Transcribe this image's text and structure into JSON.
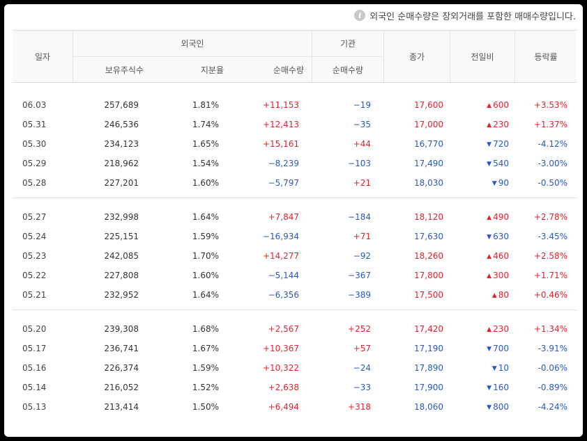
{
  "notice": {
    "icon": "info-icon",
    "text": "외국인 순매수량은 장외거래를 포함한 매매수량입니다."
  },
  "headers": {
    "date": "일자",
    "foreign": "외국인",
    "holdings": "보유주식수",
    "ratio": "지분율",
    "foreign_net": "순매수량",
    "institution": "기관",
    "institution_net": "순매수량",
    "close": "종가",
    "diff": "전일비",
    "rate": "등락률"
  },
  "colors": {
    "up": "#e5212d",
    "down": "#2a58c3"
  },
  "groups": [
    [
      {
        "date": "06.03",
        "holdings": "257,689",
        "ratio": "1.81%",
        "foreign_net": "+11,153",
        "foreign_dir": "up",
        "inst_net": "−19",
        "inst_dir": "down",
        "close": "17,600",
        "close_dir": "up",
        "diff": "600",
        "diff_dir": "up",
        "rate": "+3.53%"
      },
      {
        "date": "05.31",
        "holdings": "246,536",
        "ratio": "1.74%",
        "foreign_net": "+12,413",
        "foreign_dir": "up",
        "inst_net": "−35",
        "inst_dir": "down",
        "close": "17,000",
        "close_dir": "up",
        "diff": "230",
        "diff_dir": "up",
        "rate": "+1.37%"
      },
      {
        "date": "05.30",
        "holdings": "234,123",
        "ratio": "1.65%",
        "foreign_net": "+15,161",
        "foreign_dir": "up",
        "inst_net": "+44",
        "inst_dir": "up",
        "close": "16,770",
        "close_dir": "down",
        "diff": "720",
        "diff_dir": "down",
        "rate": "-4.12%"
      },
      {
        "date": "05.29",
        "holdings": "218,962",
        "ratio": "1.54%",
        "foreign_net": "−8,239",
        "foreign_dir": "down",
        "inst_net": "−103",
        "inst_dir": "down",
        "close": "17,490",
        "close_dir": "down",
        "diff": "540",
        "diff_dir": "down",
        "rate": "-3.00%"
      },
      {
        "date": "05.28",
        "holdings": "227,201",
        "ratio": "1.60%",
        "foreign_net": "−5,797",
        "foreign_dir": "down",
        "inst_net": "+21",
        "inst_dir": "up",
        "close": "18,030",
        "close_dir": "down",
        "diff": "90",
        "diff_dir": "down",
        "rate": "-0.50%"
      }
    ],
    [
      {
        "date": "05.27",
        "holdings": "232,998",
        "ratio": "1.64%",
        "foreign_net": "+7,847",
        "foreign_dir": "up",
        "inst_net": "−184",
        "inst_dir": "down",
        "close": "18,120",
        "close_dir": "up",
        "diff": "490",
        "diff_dir": "up",
        "rate": "+2.78%"
      },
      {
        "date": "05.24",
        "holdings": "225,151",
        "ratio": "1.59%",
        "foreign_net": "−16,934",
        "foreign_dir": "down",
        "inst_net": "+71",
        "inst_dir": "up",
        "close": "17,630",
        "close_dir": "down",
        "diff": "630",
        "diff_dir": "down",
        "rate": "-3.45%"
      },
      {
        "date": "05.23",
        "holdings": "242,085",
        "ratio": "1.70%",
        "foreign_net": "+14,277",
        "foreign_dir": "up",
        "inst_net": "−92",
        "inst_dir": "down",
        "close": "18,260",
        "close_dir": "up",
        "diff": "460",
        "diff_dir": "up",
        "rate": "+2.58%"
      },
      {
        "date": "05.22",
        "holdings": "227,808",
        "ratio": "1.60%",
        "foreign_net": "−5,144",
        "foreign_dir": "down",
        "inst_net": "−367",
        "inst_dir": "down",
        "close": "17,800",
        "close_dir": "up",
        "diff": "300",
        "diff_dir": "up",
        "rate": "+1.71%"
      },
      {
        "date": "05.21",
        "holdings": "232,952",
        "ratio": "1.64%",
        "foreign_net": "−6,356",
        "foreign_dir": "down",
        "inst_net": "−389",
        "inst_dir": "down",
        "close": "17,500",
        "close_dir": "up",
        "diff": "80",
        "diff_dir": "up",
        "rate": "+0.46%"
      }
    ],
    [
      {
        "date": "05.20",
        "holdings": "239,308",
        "ratio": "1.68%",
        "foreign_net": "+2,567",
        "foreign_dir": "up",
        "inst_net": "+252",
        "inst_dir": "up",
        "close": "17,420",
        "close_dir": "up",
        "diff": "230",
        "diff_dir": "up",
        "rate": "+1.34%"
      },
      {
        "date": "05.17",
        "holdings": "236,741",
        "ratio": "1.67%",
        "foreign_net": "+10,367",
        "foreign_dir": "up",
        "inst_net": "+57",
        "inst_dir": "up",
        "close": "17,190",
        "close_dir": "down",
        "diff": "700",
        "diff_dir": "down",
        "rate": "-3.91%"
      },
      {
        "date": "05.16",
        "holdings": "226,374",
        "ratio": "1.59%",
        "foreign_net": "+10,322",
        "foreign_dir": "up",
        "inst_net": "−24",
        "inst_dir": "down",
        "close": "17,890",
        "close_dir": "down",
        "diff": "10",
        "diff_dir": "down",
        "rate": "-0.06%"
      },
      {
        "date": "05.14",
        "holdings": "216,052",
        "ratio": "1.52%",
        "foreign_net": "+2,638",
        "foreign_dir": "up",
        "inst_net": "−33",
        "inst_dir": "down",
        "close": "17,900",
        "close_dir": "down",
        "diff": "160",
        "diff_dir": "down",
        "rate": "-0.89%"
      },
      {
        "date": "05.13",
        "holdings": "213,414",
        "ratio": "1.50%",
        "foreign_net": "+6,494",
        "foreign_dir": "up",
        "inst_net": "+318",
        "inst_dir": "up",
        "close": "18,060",
        "close_dir": "down",
        "diff": "800",
        "diff_dir": "down",
        "rate": "-4.24%"
      }
    ]
  ]
}
